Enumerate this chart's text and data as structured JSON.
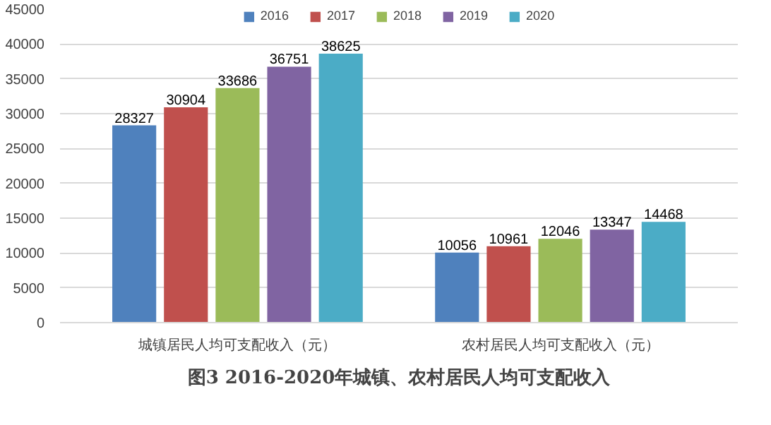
{
  "chart_data": {
    "type": "bar",
    "title": "图3 2016-2020年城镇、农村居民人均可支配收入",
    "categories": [
      "城镇居民人均可支配收入（元）",
      "农村居民人均可支配收入（元）"
    ],
    "series": [
      {
        "name": "2016",
        "color": "#4f81bd",
        "values": [
          28327,
          10056
        ]
      },
      {
        "name": "2017",
        "color": "#c0504d",
        "values": [
          30904,
          10961
        ]
      },
      {
        "name": "2018",
        "color": "#9bbb59",
        "values": [
          33686,
          12046
        ]
      },
      {
        "name": "2019",
        "color": "#8064a2",
        "values": [
          36751,
          13347
        ]
      },
      {
        "name": "2020",
        "color": "#4bacc6",
        "values": [
          38625,
          14468
        ]
      }
    ],
    "ylim": [
      0,
      45000
    ],
    "yticks": [
      0,
      5000,
      10000,
      15000,
      20000,
      25000,
      30000,
      35000,
      40000,
      45000
    ],
    "grid": "y",
    "legend": "top",
    "data_labels": true
  }
}
